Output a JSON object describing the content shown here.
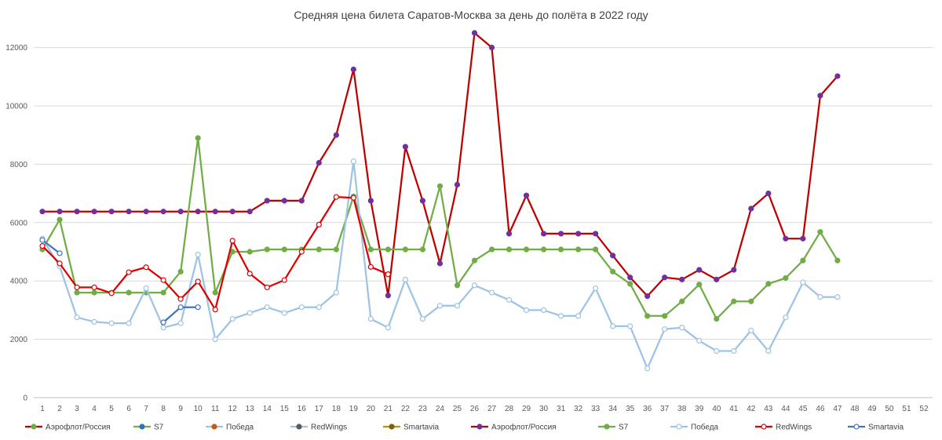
{
  "chart_data": {
    "type": "line",
    "title": "Средняя цена билета Саратов-Москва за день до полёта в 2022 году",
    "xlabel": "",
    "ylabel": "",
    "x": [
      1,
      2,
      3,
      4,
      5,
      6,
      7,
      8,
      9,
      10,
      11,
      12,
      13,
      14,
      15,
      16,
      17,
      18,
      19,
      20,
      21,
      22,
      23,
      24,
      25,
      26,
      27,
      28,
      29,
      30,
      31,
      32,
      33,
      34,
      35,
      36,
      37,
      38,
      39,
      40,
      41,
      42,
      43,
      44,
      45,
      46,
      47,
      48,
      49,
      50,
      51,
      52
    ],
    "xlim": [
      1,
      52
    ],
    "ylim": [
      0,
      12500
    ],
    "yticks": [
      0,
      2000,
      4000,
      6000,
      8000,
      10000,
      12000
    ],
    "grid": "horizontal",
    "legend_position": "bottom",
    "series": [
      {
        "name": "Аэрофлот/Россия",
        "color": "#c00000",
        "marker": "#7030a0",
        "marker_fill": "#7030a0",
        "values": [
          6380,
          6380,
          6380,
          6380,
          6380,
          6380,
          6380,
          6380,
          6380,
          6380,
          6380,
          6380,
          6380,
          6750,
          6750,
          6750,
          8050,
          9000,
          11250,
          6750,
          3500,
          8600,
          6750,
          4600,
          7300,
          12500,
          12000,
          5620,
          6930,
          5620,
          5620,
          5620,
          5620,
          4870,
          4120,
          3480,
          4120,
          4050,
          4380,
          4050,
          4380,
          6480,
          7000,
          5450,
          5450,
          10350,
          11020,
          null,
          null,
          null,
          null,
          null
        ]
      },
      {
        "name": "S7",
        "color": "#70ad47",
        "marker": "#70ad47",
        "marker_fill": "#70ad47",
        "values": [
          5080,
          6100,
          3600,
          3600,
          3600,
          3600,
          3600,
          3600,
          4320,
          8900,
          3600,
          5000,
          5000,
          5080,
          5080,
          5080,
          5080,
          5080,
          6900,
          5080,
          5080,
          5080,
          5080,
          7250,
          3850,
          4700,
          5080,
          5080,
          5080,
          5080,
          5080,
          5080,
          5080,
          4320,
          3900,
          2800,
          2800,
          3300,
          3880,
          2700,
          3300,
          3300,
          3900,
          4100,
          4700,
          5680,
          4700,
          null,
          null,
          null,
          null,
          null
        ]
      },
      {
        "name": "Победа",
        "color": "#9dc3e6",
        "marker": "#9dc3e6",
        "marker_fill": "#ffffff",
        "values": [
          5450,
          4500,
          2750,
          2600,
          2550,
          2550,
          3750,
          2400,
          2550,
          4900,
          2000,
          2700,
          2900,
          3100,
          2900,
          3100,
          3100,
          3600,
          8100,
          2700,
          2400,
          4050,
          2700,
          3150,
          3150,
          3850,
          3600,
          3350,
          3000,
          3000,
          2800,
          2800,
          3750,
          2450,
          2450,
          1000,
          2350,
          2400,
          1950,
          1600,
          1600,
          2300,
          1600,
          2750,
          3950,
          3450,
          3450,
          null,
          null,
          null,
          null,
          null
        ]
      },
      {
        "name": "RedWings",
        "color": "#e00000",
        "marker": "#e00000",
        "marker_fill": "#ffffff",
        "values": [
          5200,
          4600,
          3780,
          3780,
          3580,
          4300,
          4470,
          4030,
          3380,
          3980,
          3020,
          5380,
          4250,
          3780,
          4030,
          5000,
          5930,
          6880,
          6850,
          4480,
          4230,
          null,
          null,
          null,
          null,
          null,
          null,
          null,
          null,
          null,
          null,
          null,
          null,
          null,
          null,
          null,
          null,
          null,
          null,
          null,
          null,
          null,
          null,
          null,
          null,
          null,
          null,
          null,
          null,
          null,
          null,
          null
        ]
      },
      {
        "name": "Smartavia",
        "color": "#4472c4",
        "marker": "#4472c4",
        "marker_fill": "#ffffff",
        "values": [
          5400,
          4950,
          null,
          null,
          null,
          null,
          null,
          2580,
          3100,
          3100,
          null,
          null,
          null,
          null,
          null,
          null,
          null,
          null,
          null,
          null,
          null,
          null,
          null,
          null,
          null,
          null,
          null,
          null,
          null,
          null,
          null,
          null,
          null,
          null,
          null,
          null,
          null,
          null,
          null,
          null,
          null,
          null,
          null,
          null,
          null,
          null,
          null,
          null,
          null,
          null,
          null,
          null
        ]
      }
    ],
    "legend": [
      {
        "label": "Аэрофлот/Россия",
        "line": "#c00000",
        "marker": "#70ad47",
        "marker_fill": "#70ad47"
      },
      {
        "label": "S7",
        "line": "#70ad47",
        "marker": "#2e75b6",
        "marker_fill": "#2e75b6"
      },
      {
        "label": "Победа",
        "line": "#9dc3e6",
        "marker": "#c55a11",
        "marker_fill": "#c55a11"
      },
      {
        "label": "RedWings",
        "line": "#9dc3e6",
        "marker": "#5b5b5b",
        "marker_fill": "#5b5b5b"
      },
      {
        "label": "Smartavia",
        "line": "#bf9000",
        "marker": "#7f6000",
        "marker_fill": "#7f6000"
      },
      {
        "label": "Аэрофлот/Россия",
        "line": "#c00000",
        "marker": "#7030a0",
        "marker_fill": "#7030a0"
      },
      {
        "label": "S7",
        "line": "#70ad47",
        "marker": "#70ad47",
        "marker_fill": "#70ad47"
      },
      {
        "label": "Победа",
        "line": "#9dc3e6",
        "marker": "#9dc3e6",
        "marker_fill": "#ffffff"
      },
      {
        "label": "RedWings",
        "line": "#e00000",
        "marker": "#e00000",
        "marker_fill": "#ffffff"
      },
      {
        "label": "Smartavia",
        "line": "#4472c4",
        "marker": "#4472c4",
        "marker_fill": "#ffffff"
      }
    ]
  }
}
